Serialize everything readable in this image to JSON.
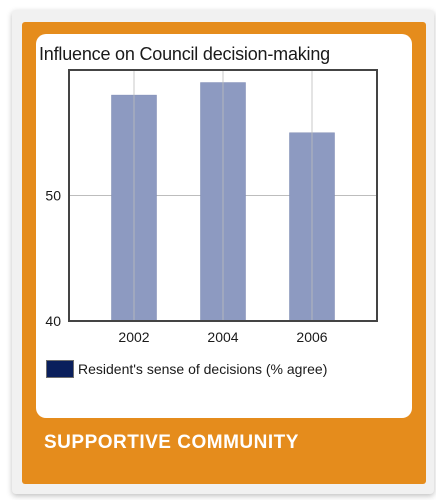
{
  "colors": {
    "card": "#e58c1c",
    "bar": "#8d9ac1",
    "bar_edge": "#7c89b2",
    "swatch": "#0a1f5c",
    "grid": "#bdbdbd",
    "axis": "#444444"
  },
  "chart_data": {
    "type": "bar",
    "title": "Influence on Council decision-making",
    "xlabel": "",
    "ylabel": "",
    "categories": [
      "2002",
      "2004",
      "2006"
    ],
    "series": [
      {
        "name": "Resident's sense of decisions (% agree)",
        "values": [
          58,
          59,
          55
        ]
      }
    ],
    "ylim": [
      40,
      60
    ],
    "yticks": [
      40,
      50
    ],
    "grid": true,
    "legend": "bottom"
  },
  "banner": {
    "label": "SUPPORTIVE COMMUNITY"
  }
}
